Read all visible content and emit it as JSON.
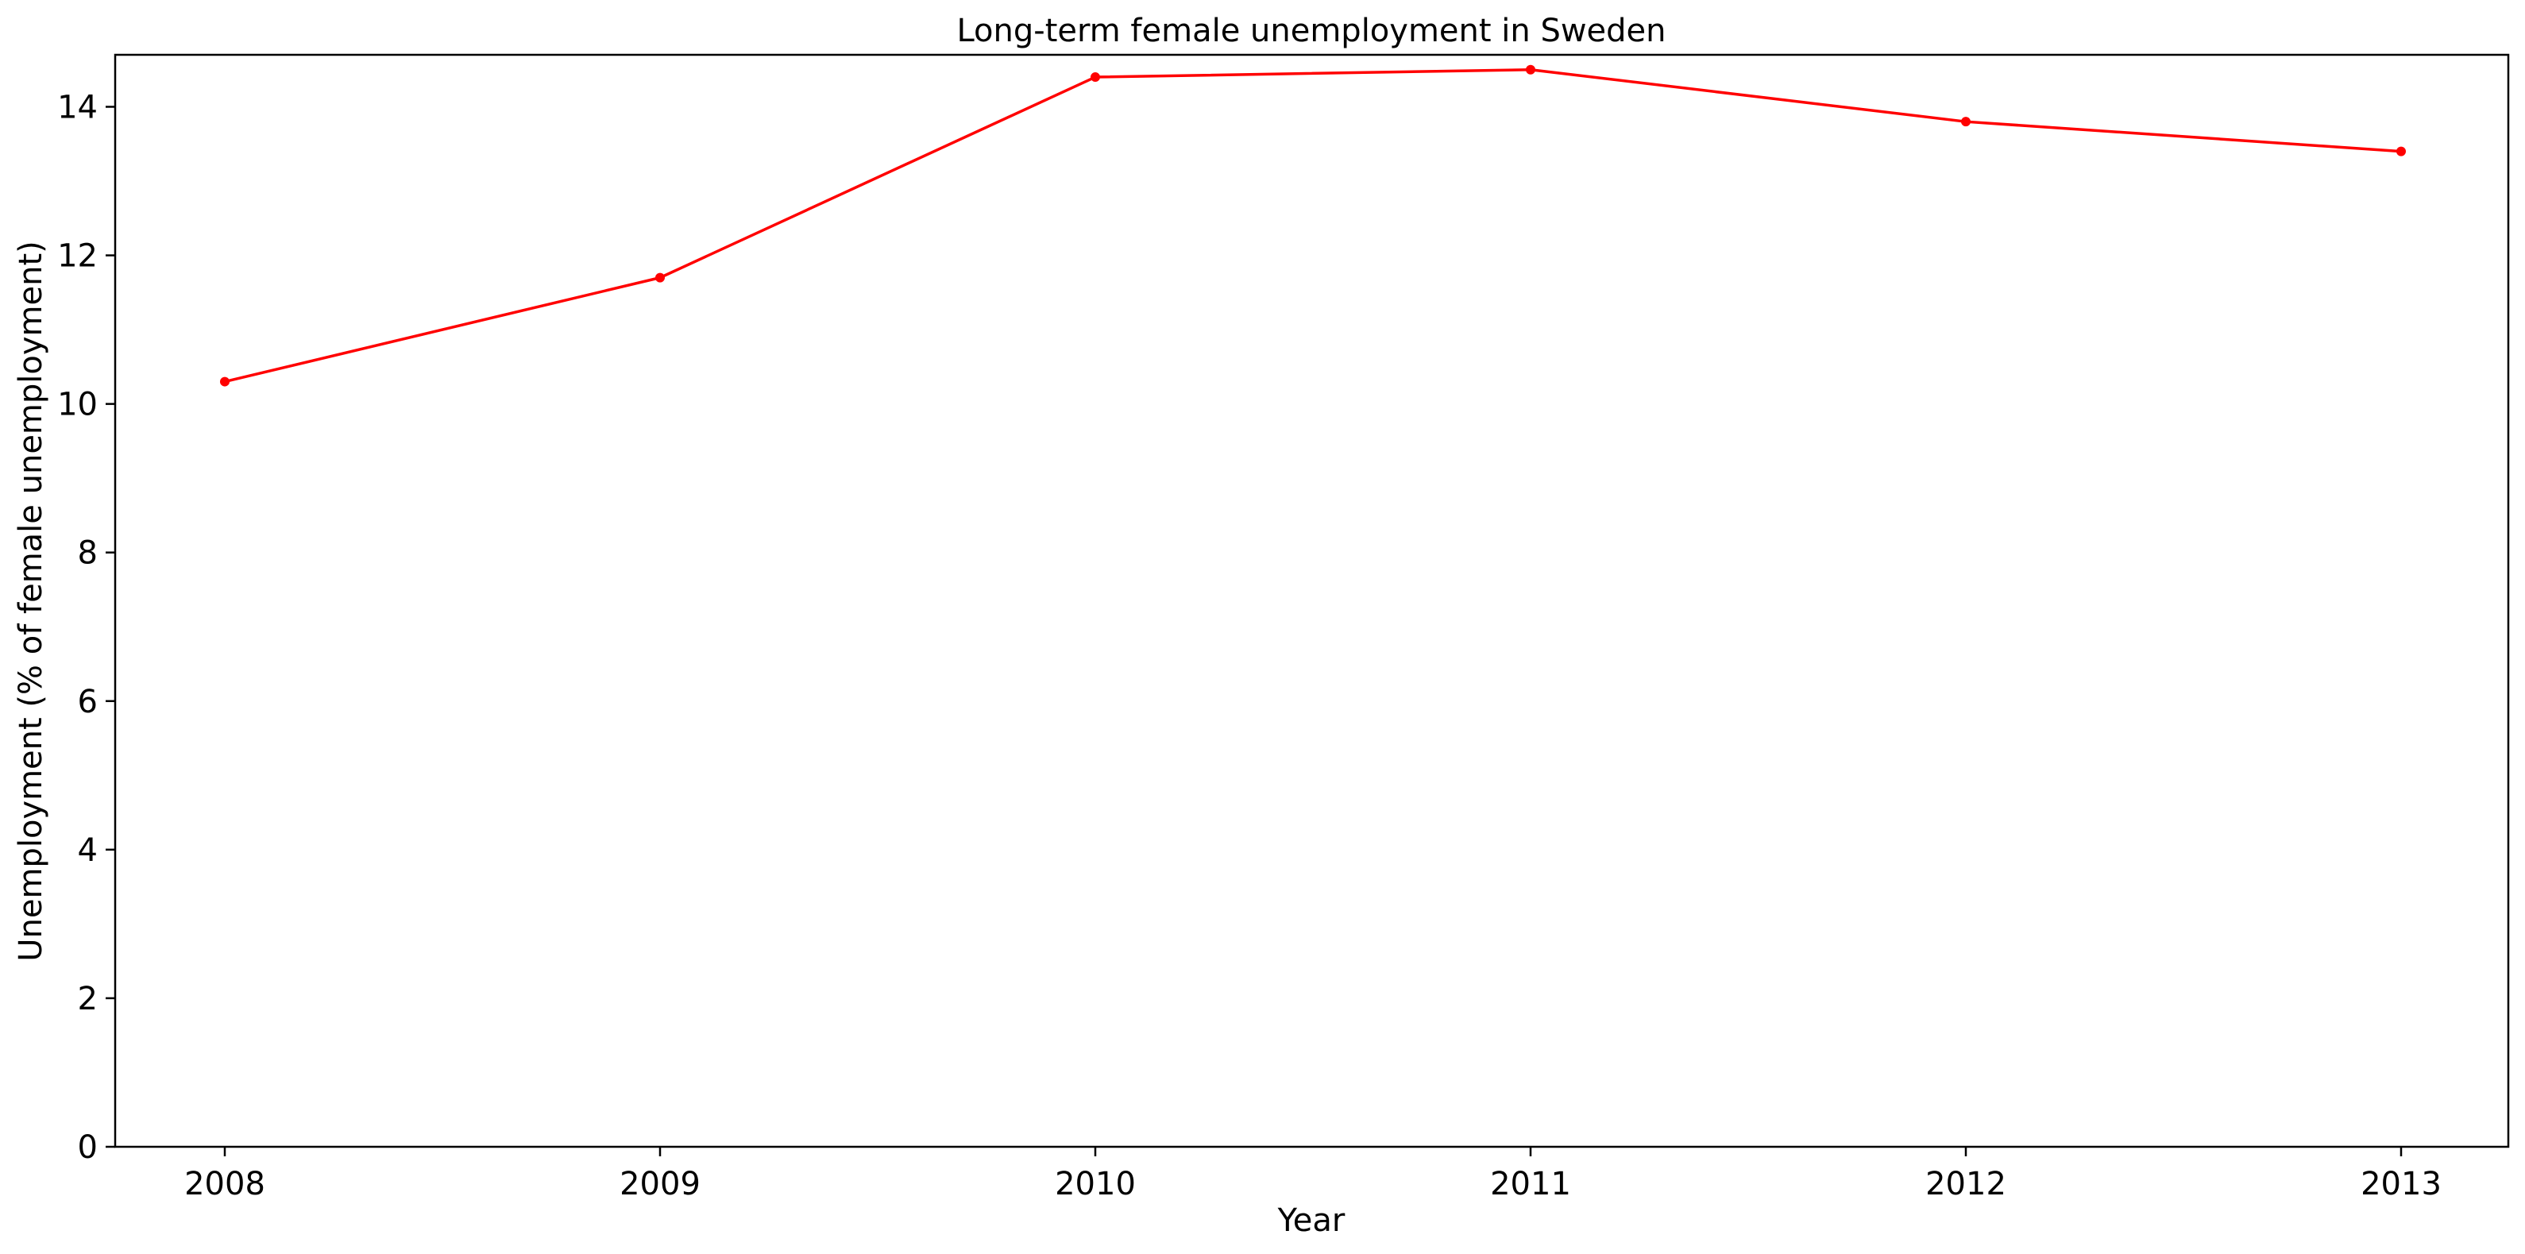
{
  "chart_data": {
    "type": "line",
    "title": "Long-term female unemployment in Sweden",
    "xlabel": "Year",
    "ylabel": "Unemployment (% of female unemployment)",
    "x": [
      "2008",
      "2009",
      "2010",
      "2011",
      "2012",
      "2013"
    ],
    "series": [
      {
        "values": [
          10.3,
          11.7,
          14.4,
          14.5,
          13.8,
          13.4
        ],
        "color": "#ff0000",
        "marker": "dot"
      }
    ],
    "ylim": [
      0,
      14.7
    ],
    "yticks": [
      0,
      2,
      4,
      6,
      8,
      10,
      12,
      14
    ],
    "grid": false,
    "legend": "none"
  }
}
